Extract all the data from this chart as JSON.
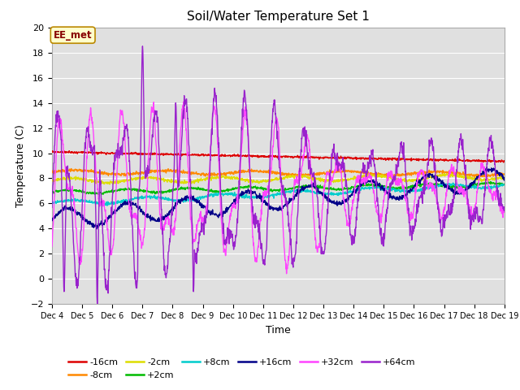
{
  "title": "Soil/Water Temperature Set 1",
  "xlabel": "Time",
  "ylabel": "Temperature (C)",
  "ylim": [
    -2,
    20
  ],
  "yticks": [
    -2,
    0,
    2,
    4,
    6,
    8,
    10,
    12,
    14,
    16,
    18,
    20
  ],
  "fig_bg": "#ffffff",
  "plot_bg": "#e0e0e0",
  "grid_color": "#ffffff",
  "annotation_text": "EE_met",
  "annotation_bg": "#ffffcc",
  "annotation_border": "#bb8800",
  "annotation_text_color": "#880000",
  "series_colors": {
    "-16cm": "#dd0000",
    "-8cm": "#ff8800",
    "-2cm": "#dddd00",
    "+2cm": "#00bb00",
    "+8cm": "#00cccc",
    "+16cm": "#000088",
    "+32cm": "#ff44ff",
    "+64cm": "#9922cc"
  },
  "legend_entries": [
    "-16cm",
    "-8cm",
    "-2cm",
    "+2cm",
    "+8cm",
    "+16cm",
    "+32cm",
    "+64cm"
  ],
  "xtick_labels": [
    "Dec 4",
    "Dec 5",
    "Dec 6",
    "Dec 7",
    "Dec 8",
    "Dec 9",
    "Dec 10",
    "Dec 11",
    "Dec 12",
    "Dec 13",
    "Dec 14",
    "Dec 15",
    "Dec 16",
    "Dec 17",
    "Dec 18",
    "Dec 19"
  ]
}
